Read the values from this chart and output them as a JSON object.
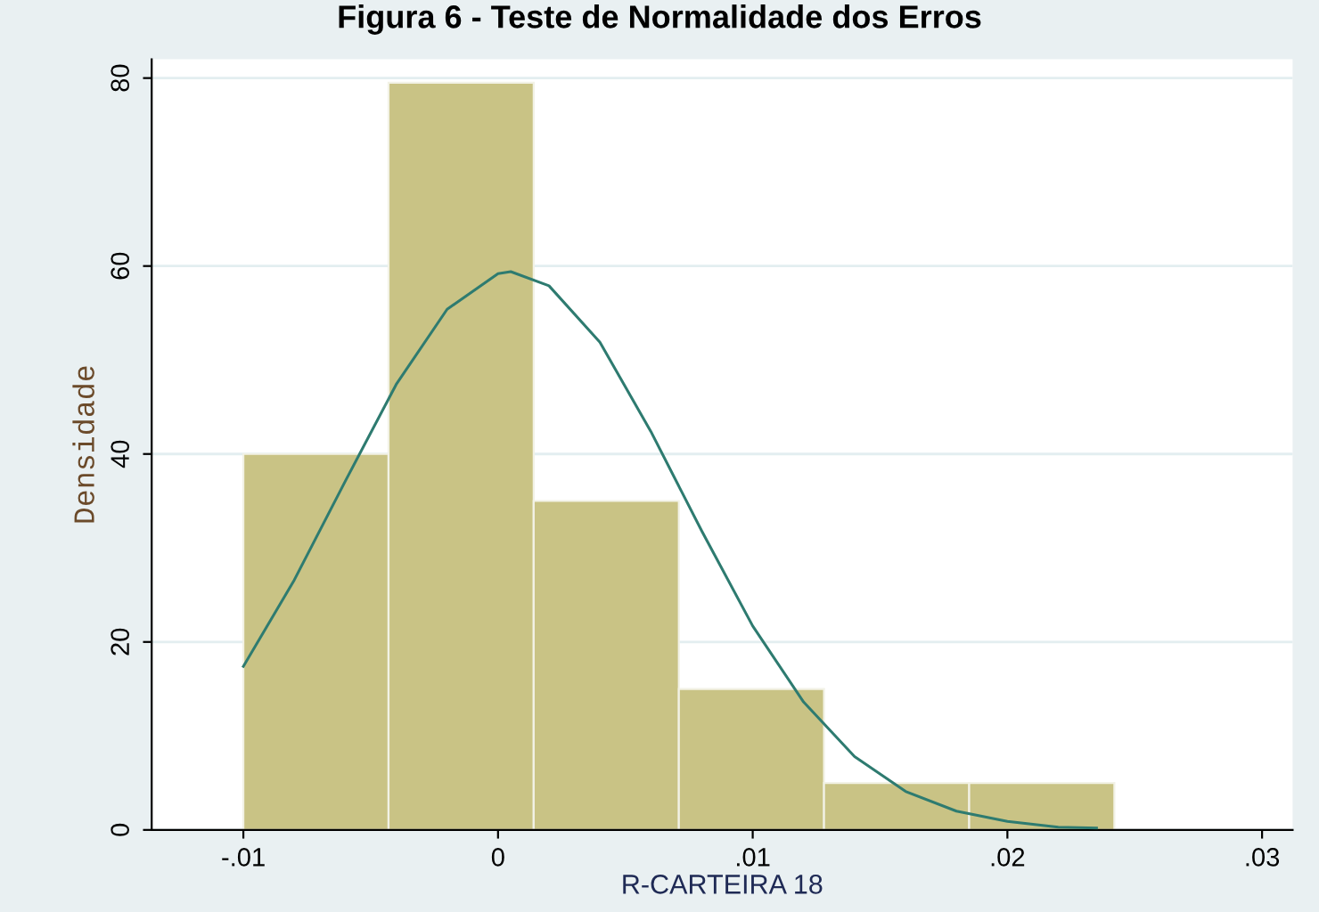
{
  "chart_data": {
    "type": "histogram",
    "title": "Figura 6 - Teste de Normalidade dos Erros",
    "xlabel": "R-CARTEIRA 18",
    "ylabel": "Densidade",
    "bins": [
      -0.01,
      -0.0043,
      0.0014,
      0.0071,
      0.0128,
      0.0185,
      0.0242
    ],
    "values": [
      40,
      79.5,
      35,
      15,
      5,
      5
    ],
    "color": "#c9c385",
    "series": [
      {
        "type": "line",
        "color": "#2e7b70",
        "x": [
          -0.01,
          -0.008,
          -0.006,
          -0.004,
          -0.002,
          0,
          0.0005,
          0.002,
          0.004,
          0.006,
          0.008,
          0.01,
          0.012,
          0.014,
          0.016,
          0.018,
          0.02,
          0.022,
          0.0235
        ],
        "values": [
          17.4,
          26.6,
          37.1,
          47.4,
          55.4,
          59.2,
          59.4,
          57.9,
          51.9,
          42.4,
          31.8,
          21.7,
          13.6,
          7.8,
          4.1,
          2.0,
          0.9,
          0.3,
          0.2
        ]
      }
    ],
    "xlim": [
      -0.0136,
      0.0312
    ],
    "ylim": [
      0,
      82
    ],
    "xticks": [
      {
        "value": -0.01,
        "label": "-.01"
      },
      0,
      {
        "value": 0.01,
        "label": ".01"
      },
      {
        "value": 0.02,
        "label": ".02"
      },
      {
        "value": 0.03,
        "label": ".03"
      }
    ],
    "yticks": [
      0,
      20,
      40,
      60,
      80
    ],
    "grid": "y"
  }
}
